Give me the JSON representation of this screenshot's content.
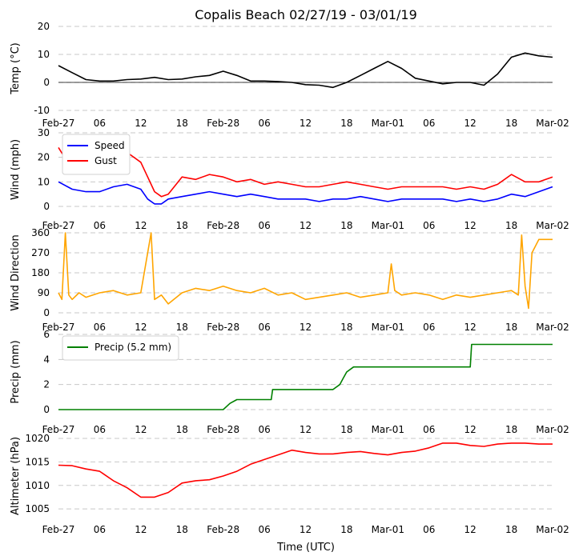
{
  "chart_data": {
    "type": "line",
    "title": "Copalis Beach 02/27/19 - 03/01/19",
    "xlabel": "Time (UTC)",
    "x_ticks": [
      "Feb-27",
      "06",
      "12",
      "18",
      "Feb-28",
      "06",
      "12",
      "18",
      "Mar-01",
      "06",
      "12",
      "18",
      "Mar-02"
    ],
    "x_range_hours": [
      0,
      72
    ],
    "panels": [
      {
        "ylabel": "Temp (°C)",
        "ylim": [
          -10,
          20
        ],
        "yticks": [
          "20",
          "10",
          "0",
          "-10"
        ],
        "zero_line": true,
        "series": [
          {
            "name": "Temp",
            "color": "#000000",
            "x": [
              0,
              2,
              4,
              6,
              8,
              10,
              12,
              14,
              16,
              18,
              20,
              22,
              24,
              26,
              28,
              30,
              32,
              34,
              36,
              38,
              40,
              42,
              44,
              46,
              48,
              50,
              52,
              54,
              56,
              58,
              60,
              62,
              64,
              66,
              68,
              70,
              72
            ],
            "values": [
              6,
              3.5,
              1,
              0.5,
              0.5,
              1,
              1.2,
              1.8,
              1,
              1.2,
              2,
              2.5,
              4,
              2.5,
              0.5,
              0.5,
              0.3,
              0,
              -0.8,
              -1,
              -1.8,
              0,
              2.5,
              5,
              7.5,
              5,
              1.5,
              0.5,
              -0.5,
              0,
              0,
              -1,
              3,
              9,
              10.5,
              9.5,
              9
            ]
          }
        ]
      },
      {
        "ylabel": "Wind (mph)",
        "ylim": [
          0,
          30
        ],
        "yticks": [
          "30",
          "20",
          "10",
          "0"
        ],
        "legend": "upper-left",
        "series": [
          {
            "name": "Speed",
            "color": "#0000ff",
            "x": [
              0,
              2,
              4,
              6,
              8,
              10,
              12,
              13,
              14,
              15,
              16,
              18,
              20,
              22,
              24,
              26,
              28,
              30,
              32,
              34,
              36,
              38,
              40,
              42,
              44,
              46,
              48,
              50,
              52,
              54,
              56,
              58,
              60,
              62,
              64,
              66,
              68,
              70,
              72
            ],
            "values": [
              10,
              7,
              6,
              6,
              8,
              9,
              7,
              3,
              1,
              1,
              3,
              4,
              5,
              6,
              5,
              4,
              5,
              4,
              3,
              3,
              3,
              2,
              3,
              3,
              4,
              3,
              2,
              3,
              3,
              3,
              3,
              2,
              3,
              2,
              3,
              5,
              4,
              6,
              8
            ]
          },
          {
            "name": "Gust",
            "color": "#ff0000",
            "x": [
              0,
              2,
              4,
              6,
              8,
              10,
              12,
              13,
              14,
              15,
              16,
              18,
              20,
              22,
              24,
              26,
              28,
              30,
              32,
              34,
              36,
              38,
              40,
              42,
              44,
              46,
              48,
              50,
              52,
              54,
              56,
              58,
              60,
              62,
              64,
              66,
              68,
              70,
              72
            ],
            "values": [
              24,
              15,
              14,
              16,
              18,
              22,
              18,
              12,
              6,
              4,
              5,
              12,
              11,
              13,
              12,
              10,
              11,
              9,
              10,
              9,
              8,
              8,
              9,
              10,
              9,
              8,
              7,
              8,
              8,
              8,
              8,
              7,
              8,
              7,
              9,
              13,
              10,
              10,
              12
            ]
          }
        ]
      },
      {
        "ylabel": "Wind Direction",
        "ylim": [
          0,
          360
        ],
        "yticks": [
          "360",
          "270",
          "180",
          "90",
          "0"
        ],
        "series": [
          {
            "name": "Direction",
            "color": "#ffa500",
            "x": [
              0,
              0.5,
              1,
              1.5,
              2,
              3,
              4,
              6,
              8,
              10,
              12,
              13.5,
              14,
              15,
              16,
              18,
              20,
              22,
              24,
              26,
              28,
              30,
              32,
              34,
              36,
              38,
              40,
              42,
              44,
              46,
              48,
              48.5,
              49,
              50,
              52,
              54,
              56,
              58,
              60,
              62,
              64,
              66,
              67,
              67.5,
              68,
              68.5,
              69,
              70,
              72
            ],
            "values": [
              90,
              60,
              360,
              80,
              60,
              90,
              70,
              90,
              100,
              80,
              90,
              360,
              60,
              80,
              40,
              90,
              110,
              100,
              120,
              100,
              90,
              110,
              80,
              90,
              60,
              70,
              80,
              90,
              70,
              80,
              90,
              220,
              100,
              80,
              90,
              80,
              60,
              80,
              70,
              80,
              90,
              100,
              80,
              350,
              120,
              20,
              270,
              330,
              330
            ]
          }
        ]
      },
      {
        "ylabel": "Precip (mm)",
        "ylim": [
          0,
          6
        ],
        "yticks": [
          "6",
          "4",
          "2",
          "0"
        ],
        "legend": "upper-left",
        "series": [
          {
            "name": "Precip (5.2 mm)",
            "color": "#008000",
            "x": [
              0,
              24,
              25,
              26,
              31,
              31.2,
              40,
              41,
              41.5,
              42,
              43,
              60,
              60.2,
              72
            ],
            "values": [
              0,
              0,
              0.5,
              0.8,
              0.8,
              1.6,
              1.6,
              2.0,
              2.5,
              3.0,
              3.4,
              3.4,
              5.2,
              5.2
            ]
          }
        ]
      },
      {
        "ylabel": "Altimeter (hPa)",
        "ylim": [
          1004,
          1020
        ],
        "yticks": [
          "1020",
          "1015",
          "1010",
          "1005"
        ],
        "series": [
          {
            "name": "Altimeter",
            "color": "#ff0000",
            "x": [
              0,
              2,
              4,
              6,
              8,
              10,
              12,
              14,
              16,
              18,
              20,
              22,
              24,
              26,
              28,
              30,
              32,
              34,
              36,
              38,
              40,
              42,
              44,
              46,
              48,
              50,
              52,
              54,
              56,
              58,
              60,
              62,
              64,
              66,
              68,
              70,
              72
            ],
            "values": [
              1014.3,
              1014.2,
              1013.5,
              1013,
              1011,
              1009.5,
              1007.5,
              1007.5,
              1008.5,
              1010.5,
              1011,
              1011.2,
              1012,
              1013,
              1014.5,
              1015.5,
              1016.5,
              1017.5,
              1017,
              1016.7,
              1016.7,
              1017,
              1017.2,
              1016.8,
              1016.5,
              1017,
              1017.3,
              1018,
              1019,
              1019,
              1018.5,
              1018.3,
              1018.8,
              1019,
              1019,
              1018.8,
              1018.8
            ]
          }
        ]
      }
    ]
  }
}
